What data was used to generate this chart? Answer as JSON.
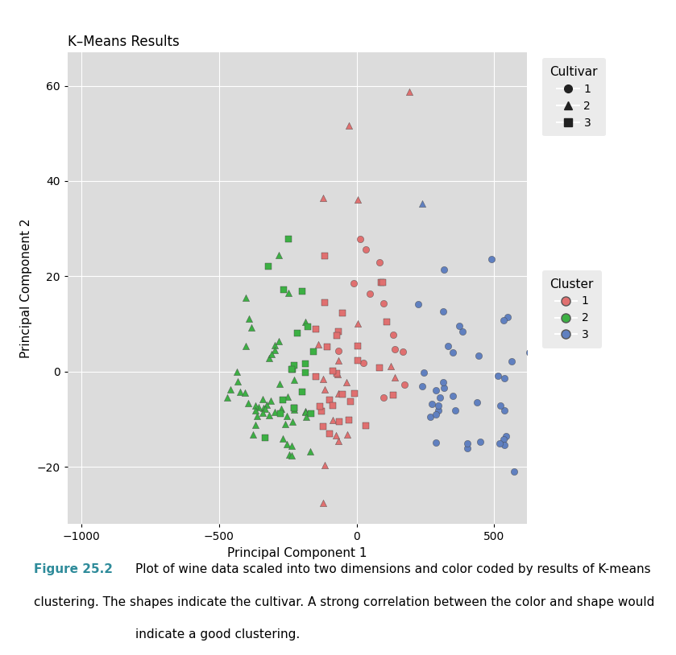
{
  "title": "K–Means Results",
  "xlabel": "Principal Component 1",
  "ylabel": "Principal Component 2",
  "xlim": [
    -1050,
    620
  ],
  "ylim": [
    -32,
    67
  ],
  "xticks": [
    -1000,
    -500,
    0,
    500
  ],
  "yticks": [
    -20,
    0,
    20,
    40,
    60
  ],
  "bg_color": "#DCDCDC",
  "fig_bg_color": "#FFFFFF",
  "grid_color": "#FFFFFF",
  "cluster_colors": {
    "1": "#E07070",
    "2": "#3CB043",
    "3": "#6080C0"
  },
  "cultivar_markers": {
    "1": "o",
    "2": "^",
    "3": "s"
  },
  "legend_cultivar_title": "Cultivar",
  "legend_cluster_title": "Cluster",
  "marker_size": 35,
  "marker_edge_width": 0.3,
  "marker_edge_color": "#444444",
  "caption_fig": "Figure 25.2",
  "caption_text": "   Plot of wine data scaled into two dimensions and color coded by results of K-means\nclustering. The shapes indicate the cultivar. A strong correlation between the color and shape would\n indicate a good clustering."
}
